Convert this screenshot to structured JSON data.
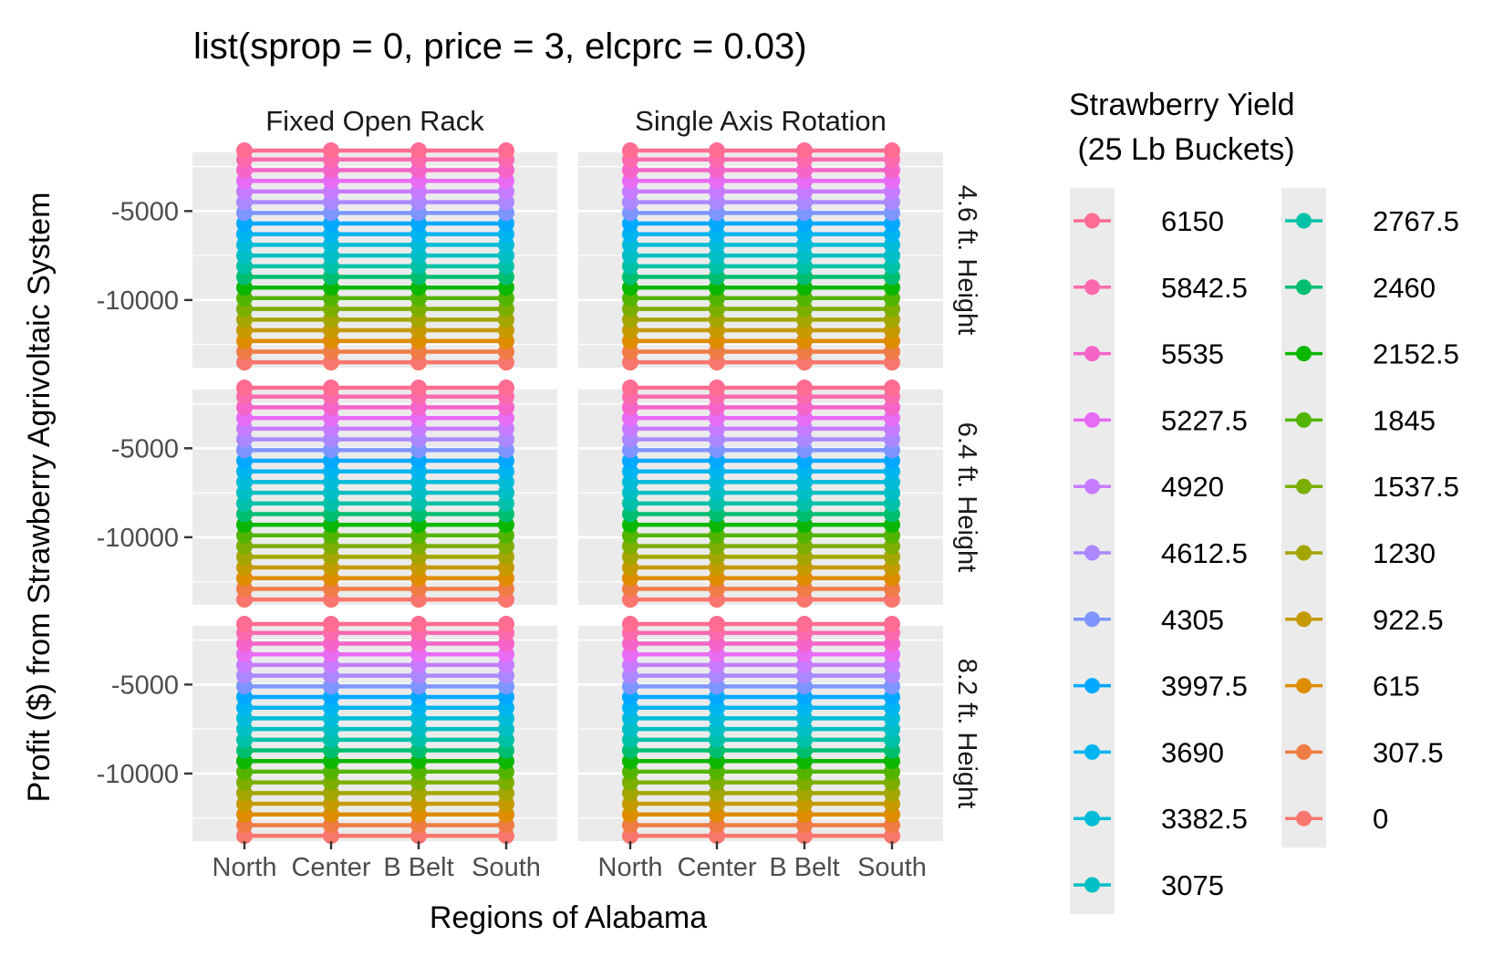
{
  "chart_data": {
    "type": "line",
    "title": "list(sprop = 0, price = 3, elcprc = 0.03)",
    "xlabel": "Regions of Alabama",
    "ylabel": "Profit ($) from Strawberry Agrivoltaic System",
    "categories": [
      "North",
      "Center",
      "B Belt",
      "South"
    ],
    "column_facets": [
      "Fixed Open Rack",
      "Single Axis Rotation"
    ],
    "row_facets": [
      "4.6 ft. Height",
      "6.4 ft. Height",
      "8.2 ft. Height"
    ],
    "y_ticks": [
      -5000,
      -10000
    ],
    "y_tick_labels": [
      "-5000",
      "-10000"
    ],
    "ylim": [
      -13800,
      -1700
    ],
    "grid": true,
    "legend": {
      "title_line1": "Strawberry Yield",
      "title_line2": " (25 Lb Buckets)",
      "position": "right",
      "ncol": 2
    },
    "series": [
      {
        "name": "6150",
        "color": "#FF6C91",
        "values": [
          -1600,
          -1600,
          -1600,
          -1600
        ]
      },
      {
        "name": "5842.5",
        "color": "#FC6AAE",
        "values": [
          -2100,
          -2100,
          -2100,
          -2100
        ]
      },
      {
        "name": "5535",
        "color": "#F564C9",
        "values": [
          -2700,
          -2700,
          -2700,
          -2700
        ]
      },
      {
        "name": "5227.5",
        "color": "#E86BF4",
        "values": [
          -3300,
          -3300,
          -3300,
          -3300
        ]
      },
      {
        "name": "4920",
        "color": "#C77CFF",
        "values": [
          -3900,
          -3900,
          -3900,
          -3900
        ]
      },
      {
        "name": "4612.5",
        "color": "#AC88FF",
        "values": [
          -4500,
          -4500,
          -4500,
          -4500
        ]
      },
      {
        "name": "4305",
        "color": "#7D96FF",
        "values": [
          -5100,
          -5100,
          -5100,
          -5100
        ]
      },
      {
        "name": "3997.5",
        "color": "#00A9FF",
        "values": [
          -5700,
          -5700,
          -5700,
          -5700
        ]
      },
      {
        "name": "3690",
        "color": "#00B4F0",
        "values": [
          -6300,
          -6300,
          -6300,
          -6300
        ]
      },
      {
        "name": "3382.5",
        "color": "#00BCD8",
        "values": [
          -6900,
          -6900,
          -6900,
          -6900
        ]
      },
      {
        "name": "3075",
        "color": "#00BFC4",
        "values": [
          -7500,
          -7500,
          -7500,
          -7500
        ]
      },
      {
        "name": "2767.5",
        "color": "#00C1A7",
        "values": [
          -8100,
          -8100,
          -8100,
          -8100
        ]
      },
      {
        "name": "2460",
        "color": "#00BE70",
        "values": [
          -8700,
          -8700,
          -8700,
          -8700
        ]
      },
      {
        "name": "2152.5",
        "color": "#0CB702",
        "values": [
          -9300,
          -9300,
          -9300,
          -9300
        ]
      },
      {
        "name": "1845",
        "color": "#53B400",
        "values": [
          -9900,
          -9900,
          -9900,
          -9900
        ]
      },
      {
        "name": "1537.5",
        "color": "#7CAE00",
        "values": [
          -10500,
          -10500,
          -10500,
          -10500
        ]
      },
      {
        "name": "1230",
        "color": "#A3A500",
        "values": [
          -11100,
          -11100,
          -11100,
          -11100
        ]
      },
      {
        "name": "922.5",
        "color": "#C49A00",
        "values": [
          -11700,
          -11700,
          -11700,
          -11700
        ]
      },
      {
        "name": "615",
        "color": "#DE8C00",
        "values": [
          -12300,
          -12300,
          -12300,
          -12300
        ]
      },
      {
        "name": "307.5",
        "color": "#F07C45",
        "values": [
          -12900,
          -12900,
          -12900,
          -12900
        ]
      },
      {
        "name": "0",
        "color": "#F8766D",
        "values": [
          -13500,
          -13500,
          -13500,
          -13500
        ]
      }
    ]
  }
}
